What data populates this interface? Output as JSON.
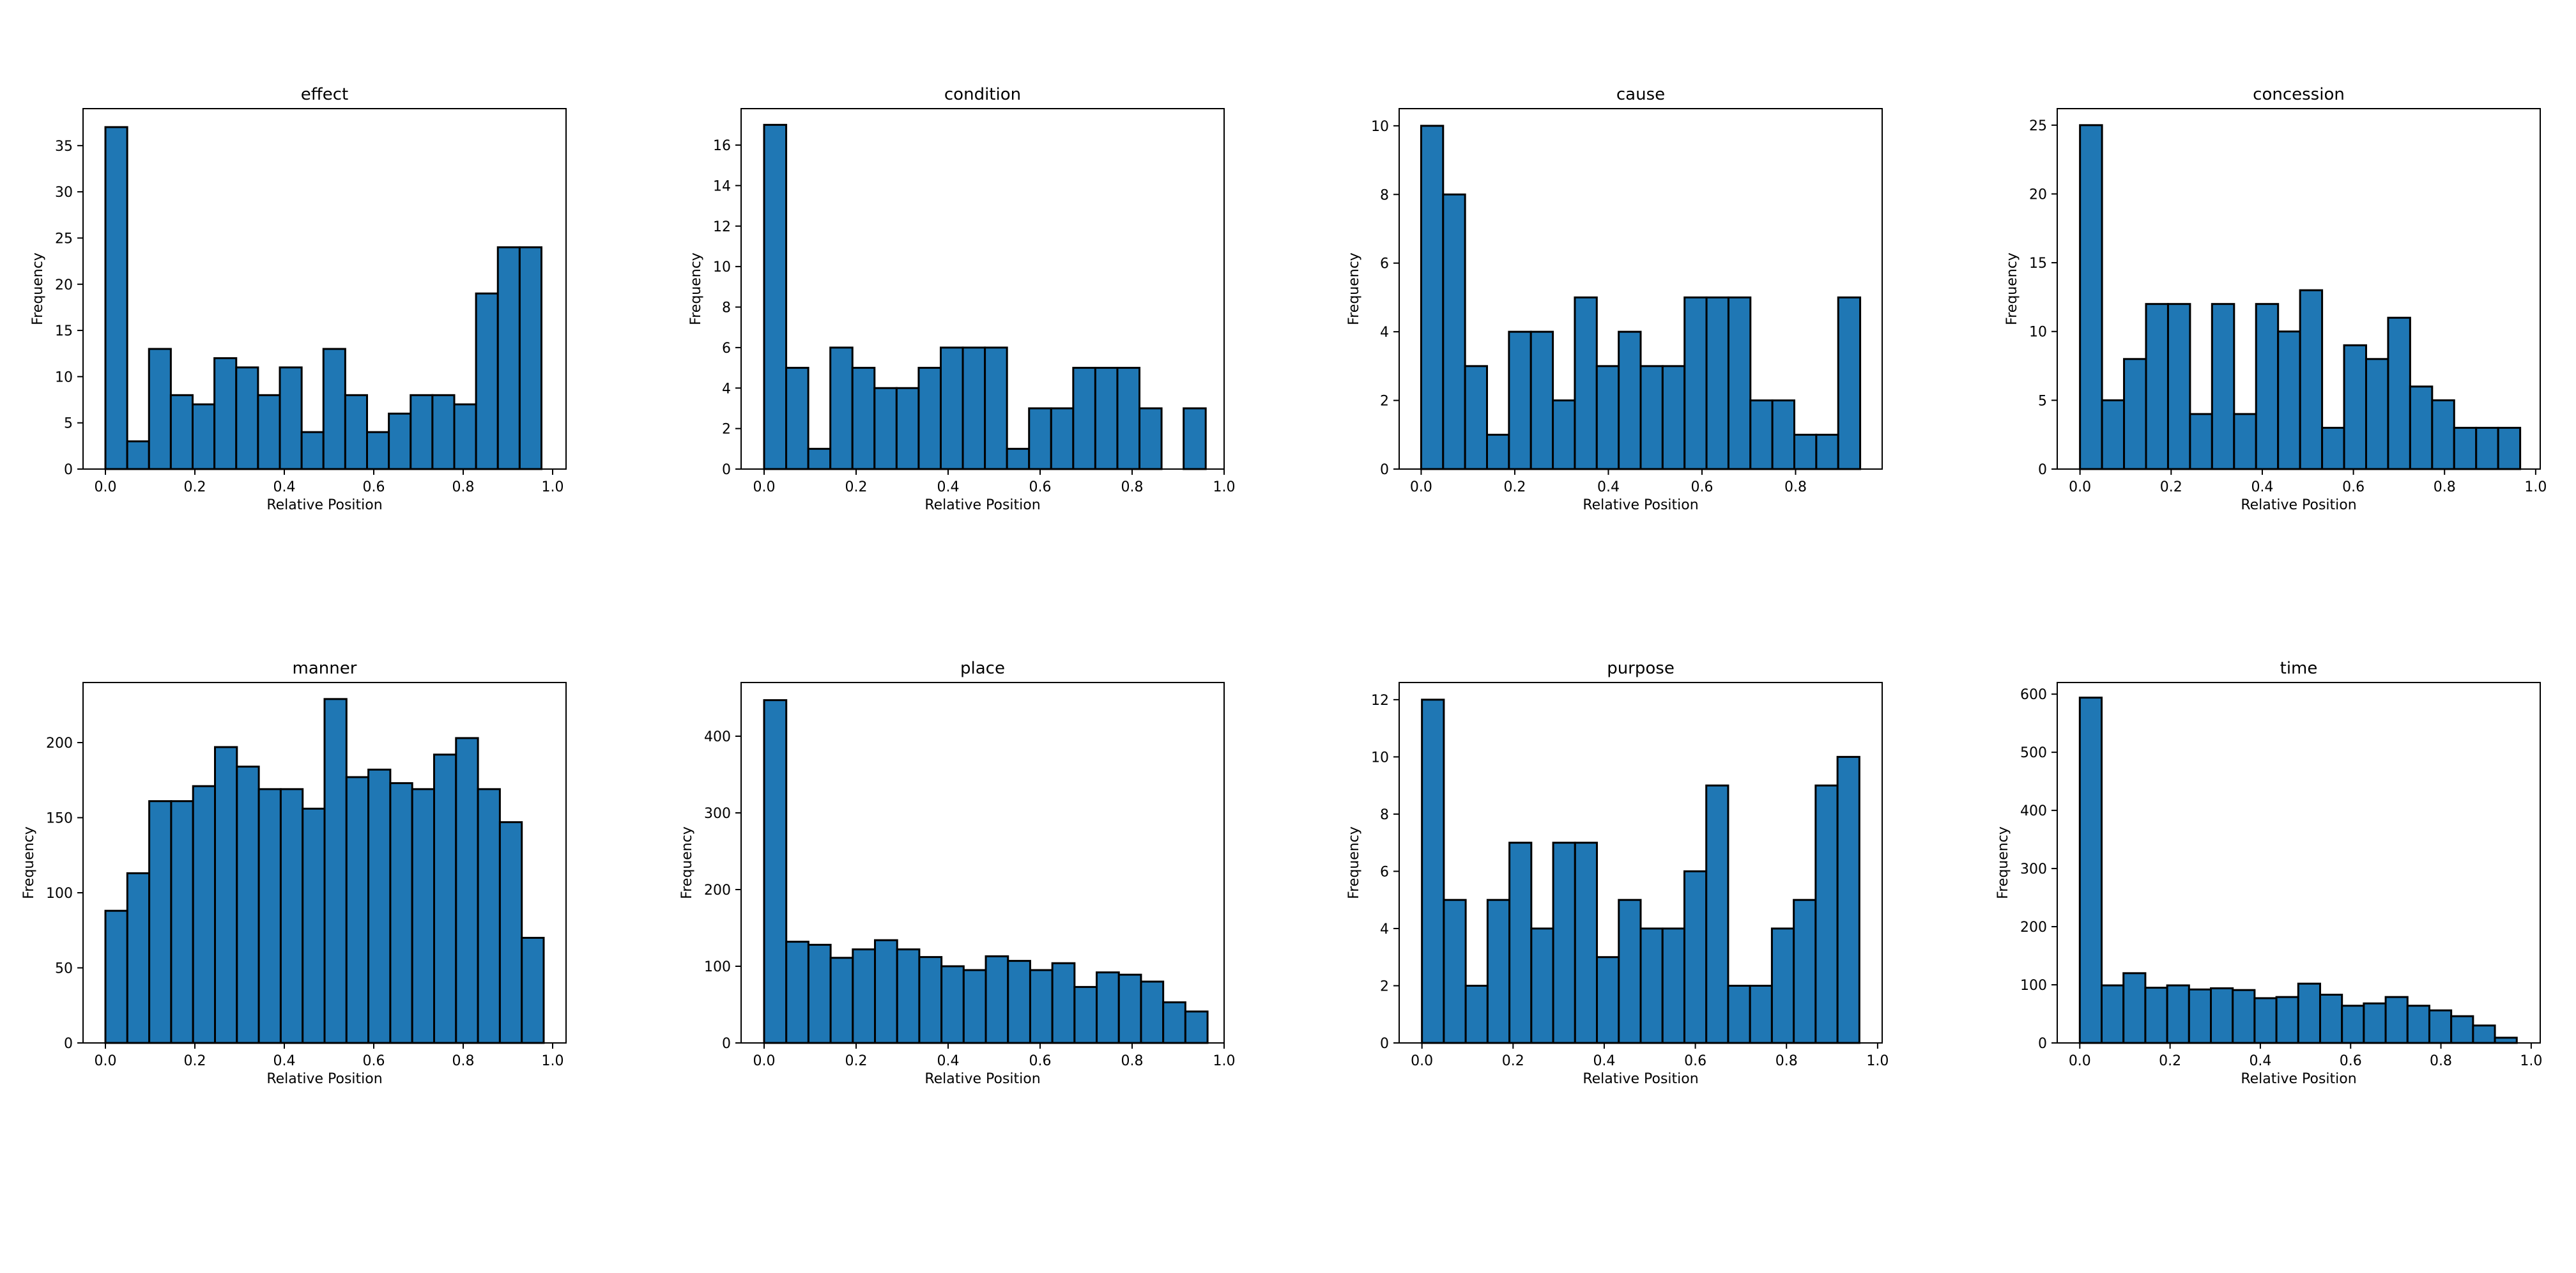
{
  "colors": {
    "bar_fill": "#1f77b4",
    "bar_edge": "#000000"
  },
  "chart_data": [
    {
      "type": "bar",
      "title": "effect",
      "xlabel": "Relative Position",
      "ylabel": "Frequency",
      "xlim": [
        -0.05,
        1.03
      ],
      "ylim": [
        0,
        39
      ],
      "xticks": [
        0.0,
        0.2,
        0.4,
        0.6,
        0.8,
        1.0
      ],
      "xtick_labels": [
        "0.0",
        "0.2",
        "0.4",
        "0.6",
        "0.8",
        "1.0"
      ],
      "yticks": [
        0,
        5,
        10,
        15,
        20,
        25,
        30,
        35
      ],
      "bin_width": 0.04875,
      "bins": [
        {
          "x": 0.0,
          "value": 37
        },
        {
          "x": 0.04875,
          "value": 3
        },
        {
          "x": 0.0975,
          "value": 13
        },
        {
          "x": 0.14625,
          "value": 8
        },
        {
          "x": 0.195,
          "value": 7
        },
        {
          "x": 0.24375,
          "value": 12
        },
        {
          "x": 0.2925,
          "value": 11
        },
        {
          "x": 0.34125,
          "value": 8
        },
        {
          "x": 0.39,
          "value": 11
        },
        {
          "x": 0.43875,
          "value": 4
        },
        {
          "x": 0.4875,
          "value": 13
        },
        {
          "x": 0.53625,
          "value": 8
        },
        {
          "x": 0.585,
          "value": 4
        },
        {
          "x": 0.63375,
          "value": 6
        },
        {
          "x": 0.6825,
          "value": 8
        },
        {
          "x": 0.73125,
          "value": 8
        },
        {
          "x": 0.78,
          "value": 7
        },
        {
          "x": 0.82875,
          "value": 19
        },
        {
          "x": 0.8775,
          "value": 24
        },
        {
          "x": 0.92625,
          "value": 24
        }
      ]
    },
    {
      "type": "bar",
      "title": "condition",
      "xlabel": "Relative Position",
      "ylabel": "Frequency",
      "xlim": [
        -0.05,
        1.0
      ],
      "ylim": [
        0,
        17.8
      ],
      "xticks": [
        0.0,
        0.2,
        0.4,
        0.6,
        0.8,
        1.0
      ],
      "xtick_labels": [
        "0.0",
        "0.2",
        "0.4",
        "0.6",
        "0.8",
        "1.0"
      ],
      "yticks": [
        0,
        2,
        4,
        6,
        8,
        10,
        12,
        14,
        16
      ],
      "bin_width": 0.048,
      "bins": [
        {
          "x": 0.0,
          "value": 17
        },
        {
          "x": 0.048,
          "value": 5
        },
        {
          "x": 0.096,
          "value": 1
        },
        {
          "x": 0.144,
          "value": 6
        },
        {
          "x": 0.192,
          "value": 5
        },
        {
          "x": 0.24,
          "value": 4
        },
        {
          "x": 0.288,
          "value": 4
        },
        {
          "x": 0.336,
          "value": 5
        },
        {
          "x": 0.384,
          "value": 6
        },
        {
          "x": 0.432,
          "value": 6
        },
        {
          "x": 0.48,
          "value": 6
        },
        {
          "x": 0.528,
          "value": 1
        },
        {
          "x": 0.576,
          "value": 3
        },
        {
          "x": 0.624,
          "value": 3
        },
        {
          "x": 0.672,
          "value": 5
        },
        {
          "x": 0.72,
          "value": 5
        },
        {
          "x": 0.768,
          "value": 5
        },
        {
          "x": 0.816,
          "value": 3
        },
        {
          "x": 0.864,
          "value": 0
        },
        {
          "x": 0.912,
          "value": 3
        }
      ]
    },
    {
      "type": "bar",
      "title": "cause",
      "xlabel": "Relative Position",
      "ylabel": "Frequency",
      "xlim": [
        -0.047,
        0.985
      ],
      "ylim": [
        0,
        10.5
      ],
      "xticks": [
        0.0,
        0.2,
        0.4,
        0.6,
        0.8
      ],
      "xtick_labels": [
        "0.0",
        "0.2",
        "0.4",
        "0.6",
        "0.8"
      ],
      "yticks": [
        0,
        2,
        4,
        6,
        8,
        10
      ],
      "bin_width": 0.0469,
      "bins": [
        {
          "x": 0.0,
          "value": 10
        },
        {
          "x": 0.0469,
          "value": 8
        },
        {
          "x": 0.0938,
          "value": 3
        },
        {
          "x": 0.1407,
          "value": 1
        },
        {
          "x": 0.1876,
          "value": 4
        },
        {
          "x": 0.2345,
          "value": 4
        },
        {
          "x": 0.2814,
          "value": 2
        },
        {
          "x": 0.3283,
          "value": 5
        },
        {
          "x": 0.3752,
          "value": 3
        },
        {
          "x": 0.4221,
          "value": 4
        },
        {
          "x": 0.469,
          "value": 3
        },
        {
          "x": 0.5159,
          "value": 3
        },
        {
          "x": 0.5628,
          "value": 5
        },
        {
          "x": 0.6097,
          "value": 5
        },
        {
          "x": 0.6566,
          "value": 5
        },
        {
          "x": 0.7035,
          "value": 2
        },
        {
          "x": 0.7504,
          "value": 2
        },
        {
          "x": 0.7973,
          "value": 1
        },
        {
          "x": 0.8442,
          "value": 1
        },
        {
          "x": 0.8911,
          "value": 5
        }
      ]
    },
    {
      "type": "bar",
      "title": "concession",
      "xlabel": "Relative Position",
      "ylabel": "Frequency",
      "xlim": [
        -0.05,
        1.01
      ],
      "ylim": [
        0,
        26.2
      ],
      "xticks": [
        0.0,
        0.2,
        0.4,
        0.6,
        0.8,
        1.0
      ],
      "xtick_labels": [
        "0.0",
        "0.2",
        "0.4",
        "0.6",
        "0.8",
        "1.0"
      ],
      "yticks": [
        0,
        5,
        10,
        15,
        20,
        25
      ],
      "bin_width": 0.0483,
      "bins": [
        {
          "x": 0.0,
          "value": 25
        },
        {
          "x": 0.0483,
          "value": 5
        },
        {
          "x": 0.0966,
          "value": 8
        },
        {
          "x": 0.1449,
          "value": 12
        },
        {
          "x": 0.1932,
          "value": 12
        },
        {
          "x": 0.2415,
          "value": 4
        },
        {
          "x": 0.2898,
          "value": 12
        },
        {
          "x": 0.3381,
          "value": 4
        },
        {
          "x": 0.3864,
          "value": 12
        },
        {
          "x": 0.4347,
          "value": 10
        },
        {
          "x": 0.483,
          "value": 13
        },
        {
          "x": 0.5313,
          "value": 3
        },
        {
          "x": 0.5796,
          "value": 9
        },
        {
          "x": 0.6279,
          "value": 8
        },
        {
          "x": 0.6762,
          "value": 11
        },
        {
          "x": 0.7245,
          "value": 6
        },
        {
          "x": 0.7728,
          "value": 5
        },
        {
          "x": 0.8211,
          "value": 3
        },
        {
          "x": 0.8694,
          "value": 3
        },
        {
          "x": 0.9177,
          "value": 3
        }
      ]
    },
    {
      "type": "bar",
      "title": "manner",
      "xlabel": "Relative Position",
      "ylabel": "Frequency",
      "xlim": [
        -0.05,
        1.03
      ],
      "ylim": [
        0,
        240
      ],
      "xticks": [
        0.0,
        0.2,
        0.4,
        0.6,
        0.8,
        1.0
      ],
      "xtick_labels": [
        "0.0",
        "0.2",
        "0.4",
        "0.6",
        "0.8",
        "1.0"
      ],
      "yticks": [
        0,
        50,
        100,
        150,
        200
      ],
      "bin_width": 0.049,
      "bins": [
        {
          "x": 0.0,
          "value": 88
        },
        {
          "x": 0.049,
          "value": 113
        },
        {
          "x": 0.098,
          "value": 161
        },
        {
          "x": 0.147,
          "value": 161
        },
        {
          "x": 0.196,
          "value": 171
        },
        {
          "x": 0.245,
          "value": 197
        },
        {
          "x": 0.294,
          "value": 184
        },
        {
          "x": 0.343,
          "value": 169
        },
        {
          "x": 0.392,
          "value": 169
        },
        {
          "x": 0.441,
          "value": 156
        },
        {
          "x": 0.49,
          "value": 229
        },
        {
          "x": 0.539,
          "value": 177
        },
        {
          "x": 0.588,
          "value": 182
        },
        {
          "x": 0.637,
          "value": 173
        },
        {
          "x": 0.686,
          "value": 169
        },
        {
          "x": 0.735,
          "value": 192
        },
        {
          "x": 0.784,
          "value": 203
        },
        {
          "x": 0.833,
          "value": 169
        },
        {
          "x": 0.882,
          "value": 147
        },
        {
          "x": 0.931,
          "value": 70
        }
      ]
    },
    {
      "type": "bar",
      "title": "place",
      "xlabel": "Relative Position",
      "ylabel": "Frequency",
      "xlim": [
        -0.05,
        1.0
      ],
      "ylim": [
        0,
        470
      ],
      "xticks": [
        0.0,
        0.2,
        0.4,
        0.6,
        0.8,
        1.0
      ],
      "xtick_labels": [
        "0.0",
        "0.2",
        "0.4",
        "0.6",
        "0.8",
        "1.0"
      ],
      "yticks": [
        0,
        100,
        200,
        300,
        400
      ],
      "bin_width": 0.0482,
      "bins": [
        {
          "x": 0.0,
          "value": 447
        },
        {
          "x": 0.0482,
          "value": 132
        },
        {
          "x": 0.0964,
          "value": 128
        },
        {
          "x": 0.1446,
          "value": 111
        },
        {
          "x": 0.1928,
          "value": 122
        },
        {
          "x": 0.241,
          "value": 134
        },
        {
          "x": 0.2892,
          "value": 122
        },
        {
          "x": 0.3374,
          "value": 112
        },
        {
          "x": 0.3856,
          "value": 100
        },
        {
          "x": 0.4338,
          "value": 95
        },
        {
          "x": 0.482,
          "value": 113
        },
        {
          "x": 0.5302,
          "value": 107
        },
        {
          "x": 0.5784,
          "value": 95
        },
        {
          "x": 0.6266,
          "value": 104
        },
        {
          "x": 0.6748,
          "value": 73
        },
        {
          "x": 0.723,
          "value": 92
        },
        {
          "x": 0.7712,
          "value": 89
        },
        {
          "x": 0.8194,
          "value": 80
        },
        {
          "x": 0.8676,
          "value": 53
        },
        {
          "x": 0.9158,
          "value": 41
        }
      ]
    },
    {
      "type": "bar",
      "title": "purpose",
      "xlabel": "Relative Position",
      "ylabel": "Frequency",
      "xlim": [
        -0.05,
        1.01
      ],
      "ylim": [
        0,
        12.6
      ],
      "xticks": [
        0.0,
        0.2,
        0.4,
        0.6,
        0.8,
        1.0
      ],
      "xtick_labels": [
        "0.0",
        "0.2",
        "0.4",
        "0.6",
        "0.8",
        "1.0"
      ],
      "yticks": [
        0,
        2,
        4,
        6,
        8,
        10,
        12
      ],
      "bin_width": 0.048,
      "bins": [
        {
          "x": 0.0,
          "value": 12
        },
        {
          "x": 0.048,
          "value": 5
        },
        {
          "x": 0.096,
          "value": 2
        },
        {
          "x": 0.144,
          "value": 5
        },
        {
          "x": 0.192,
          "value": 7
        },
        {
          "x": 0.24,
          "value": 4
        },
        {
          "x": 0.288,
          "value": 7
        },
        {
          "x": 0.336,
          "value": 7
        },
        {
          "x": 0.384,
          "value": 3
        },
        {
          "x": 0.432,
          "value": 5
        },
        {
          "x": 0.48,
          "value": 4
        },
        {
          "x": 0.528,
          "value": 4
        },
        {
          "x": 0.576,
          "value": 6
        },
        {
          "x": 0.624,
          "value": 9
        },
        {
          "x": 0.672,
          "value": 2
        },
        {
          "x": 0.72,
          "value": 2
        },
        {
          "x": 0.768,
          "value": 4
        },
        {
          "x": 0.816,
          "value": 5
        },
        {
          "x": 0.864,
          "value": 9
        },
        {
          "x": 0.912,
          "value": 10
        }
      ]
    },
    {
      "type": "bar",
      "title": "time",
      "xlabel": "Relative Position",
      "ylabel": "Frequency",
      "xlim": [
        -0.05,
        1.02
      ],
      "ylim": [
        0,
        620
      ],
      "xticks": [
        0.0,
        0.2,
        0.4,
        0.6,
        0.8,
        1.0
      ],
      "xtick_labels": [
        "0.0",
        "0.2",
        "0.4",
        "0.6",
        "0.8",
        "1.0"
      ],
      "yticks": [
        0,
        100,
        200,
        300,
        400,
        500,
        600
      ],
      "bin_width": 0.0484,
      "bins": [
        {
          "x": 0.0,
          "value": 594
        },
        {
          "x": 0.0484,
          "value": 99
        },
        {
          "x": 0.0968,
          "value": 120
        },
        {
          "x": 0.1452,
          "value": 95
        },
        {
          "x": 0.1936,
          "value": 99
        },
        {
          "x": 0.242,
          "value": 92
        },
        {
          "x": 0.2904,
          "value": 94
        },
        {
          "x": 0.3388,
          "value": 91
        },
        {
          "x": 0.3872,
          "value": 77
        },
        {
          "x": 0.4356,
          "value": 79
        },
        {
          "x": 0.484,
          "value": 102
        },
        {
          "x": 0.5324,
          "value": 83
        },
        {
          "x": 0.5808,
          "value": 64
        },
        {
          "x": 0.6292,
          "value": 68
        },
        {
          "x": 0.6776,
          "value": 79
        },
        {
          "x": 0.726,
          "value": 64
        },
        {
          "x": 0.7744,
          "value": 56
        },
        {
          "x": 0.8228,
          "value": 46
        },
        {
          "x": 0.8712,
          "value": 30
        },
        {
          "x": 0.9196,
          "value": 9
        }
      ]
    }
  ]
}
